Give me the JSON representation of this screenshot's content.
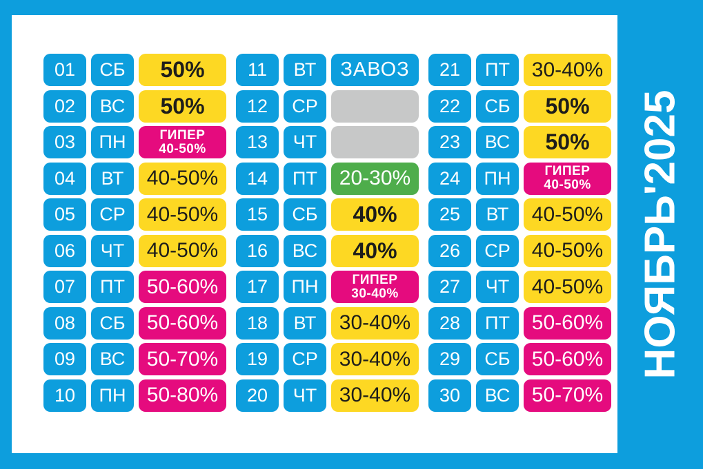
{
  "title": "НОЯБРЬ'2025",
  "colors": {
    "blue": "#0d9edd",
    "yellow": "#fdd823",
    "magenta": "#e50b7e",
    "green": "#4ead4b",
    "gray": "#c7c8c8",
    "dark_text": "#1d1d1b",
    "white_text": "#ffffff"
  },
  "days": [
    {
      "num": "01",
      "dow": "СБ",
      "value": "50%",
      "style": "yellowBold"
    },
    {
      "num": "02",
      "dow": "ВС",
      "value": "50%",
      "style": "yellowBold"
    },
    {
      "num": "03",
      "dow": "ПН",
      "value": "ГИПЕР",
      "value2": "40-50%",
      "style": "giper"
    },
    {
      "num": "04",
      "dow": "ВТ",
      "value": "40-50%",
      "style": "yellow"
    },
    {
      "num": "05",
      "dow": "СР",
      "value": "40-50%",
      "style": "yellow"
    },
    {
      "num": "06",
      "dow": "ЧТ",
      "value": "40-50%",
      "style": "yellow"
    },
    {
      "num": "07",
      "dow": "ПТ",
      "value": "50-60%",
      "style": "magenta"
    },
    {
      "num": "08",
      "dow": "СБ",
      "value": "50-60%",
      "style": "magenta"
    },
    {
      "num": "09",
      "dow": "ВС",
      "value": "50-70%",
      "style": "magenta"
    },
    {
      "num": "10",
      "dow": "ПН",
      "value": "50-80%",
      "style": "magenta"
    },
    {
      "num": "11",
      "dow": "ВТ",
      "value": "ЗАВОЗ",
      "style": "delivery"
    },
    {
      "num": "12",
      "dow": "СР",
      "value": "",
      "style": "empty"
    },
    {
      "num": "13",
      "dow": "ЧТ",
      "value": "",
      "style": "empty"
    },
    {
      "num": "14",
      "dow": "ПТ",
      "value": "20-30%",
      "style": "green"
    },
    {
      "num": "15",
      "dow": "СБ",
      "value": "40%",
      "style": "yellowBold"
    },
    {
      "num": "16",
      "dow": "ВС",
      "value": "40%",
      "style": "yellowBold"
    },
    {
      "num": "17",
      "dow": "ПН",
      "value": "ГИПЕР",
      "value2": "30-40%",
      "style": "giper"
    },
    {
      "num": "18",
      "dow": "ВТ",
      "value": "30-40%",
      "style": "yellow"
    },
    {
      "num": "19",
      "dow": "СР",
      "value": "30-40%",
      "style": "yellow"
    },
    {
      "num": "20",
      "dow": "ЧТ",
      "value": "30-40%",
      "style": "yellow"
    },
    {
      "num": "21",
      "dow": "ПТ",
      "value": "30-40%",
      "style": "yellow"
    },
    {
      "num": "22",
      "dow": "СБ",
      "value": "50%",
      "style": "yellowBold"
    },
    {
      "num": "23",
      "dow": "ВС",
      "value": "50%",
      "style": "yellowBold"
    },
    {
      "num": "24",
      "dow": "ПН",
      "value": "ГИПЕР",
      "value2": "40-50%",
      "style": "giper"
    },
    {
      "num": "25",
      "dow": "ВТ",
      "value": "40-50%",
      "style": "yellow"
    },
    {
      "num": "26",
      "dow": "СР",
      "value": "40-50%",
      "style": "yellow"
    },
    {
      "num": "27",
      "dow": "ЧТ",
      "value": "40-50%",
      "style": "yellow"
    },
    {
      "num": "28",
      "dow": "ПТ",
      "value": "50-60%",
      "style": "magenta"
    },
    {
      "num": "29",
      "dow": "СБ",
      "value": "50-60%",
      "style": "magenta"
    },
    {
      "num": "30",
      "dow": "ВС",
      "value": "50-70%",
      "style": "magenta"
    }
  ]
}
